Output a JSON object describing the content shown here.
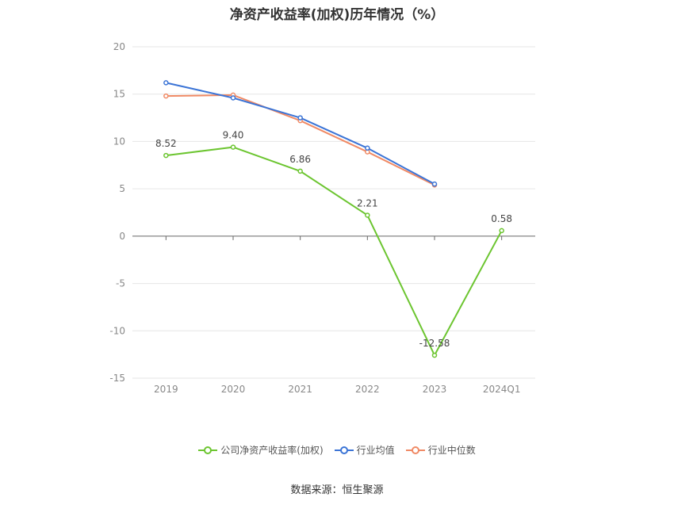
{
  "chart_data": {
    "type": "line",
    "title": "净资产收益率(加权)历年情况（%）",
    "categories": [
      "2019",
      "2020",
      "2021",
      "2022",
      "2023",
      "2024Q1"
    ],
    "ylim": [
      -15,
      20
    ],
    "yticks": [
      20,
      15,
      10,
      5,
      0,
      -5,
      -10,
      -15
    ],
    "grid": true,
    "legend_position": "bottom",
    "series": [
      {
        "name": "公司净资产收益率(加权)",
        "color": "#6cc530",
        "values": [
          8.52,
          9.4,
          6.86,
          2.21,
          -12.58,
          0.58
        ],
        "labels": [
          "8.52",
          "9.40",
          "6.86",
          "2.21",
          "-12.58",
          "0.58"
        ]
      },
      {
        "name": "行业均值",
        "color": "#3b74d6",
        "values": [
          16.2,
          14.6,
          12.5,
          9.3,
          5.5,
          null
        ]
      },
      {
        "name": "行业中位数",
        "color": "#f08a65",
        "values": [
          14.8,
          14.9,
          12.2,
          8.9,
          5.4,
          null
        ]
      }
    ]
  },
  "footer": {
    "source": "数据来源：恒生聚源"
  }
}
